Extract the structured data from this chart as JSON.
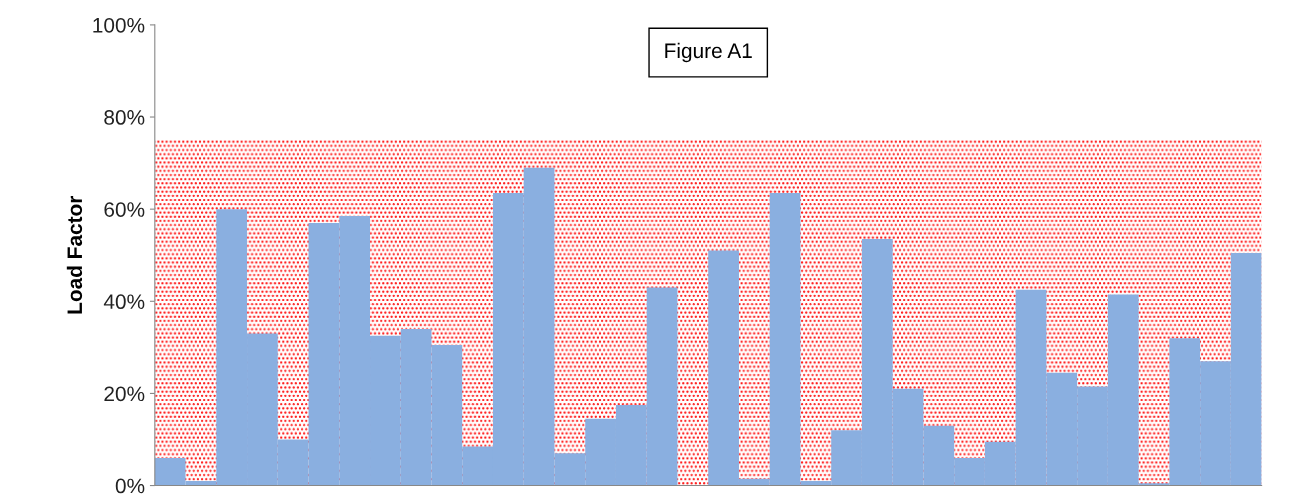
{
  "chart_data": {
    "type": "bar",
    "title": "Figure A1",
    "ylabel": "Load Factor",
    "categories": [
      null,
      null,
      null,
      null,
      null,
      null,
      null,
      null,
      null,
      null,
      null,
      null,
      null,
      null,
      null,
      null,
      null,
      null,
      null,
      null,
      null,
      null,
      null,
      null,
      null,
      null,
      null,
      null,
      null,
      null,
      null,
      null,
      null,
      null,
      null,
      null
    ],
    "values": [
      6,
      1,
      60,
      33,
      10,
      57,
      58.5,
      32.5,
      34,
      30.5,
      8.5,
      63.5,
      69,
      7,
      14.5,
      17.5,
      43,
      0,
      51,
      1.5,
      63.5,
      1,
      12,
      53.5,
      21,
      13,
      6,
      9.5,
      42.5,
      24.5,
      21.5,
      41.5,
      0.5,
      32,
      27,
      50.5
    ],
    "color": "#8aafe0",
    "ylim": [
      0,
      100
    ],
    "yticks": [
      {
        "value": 0,
        "label": "0%"
      },
      {
        "value": 20,
        "label": "20%"
      },
      {
        "value": 40,
        "label": "40%"
      },
      {
        "value": 60,
        "label": "60%"
      },
      {
        "value": 80,
        "label": "80%"
      },
      {
        "value": 100,
        "label": "100%"
      }
    ],
    "bands": [
      {
        "axis": "y",
        "from": 0,
        "to": 75,
        "color": "#ff0000"
      }
    ],
    "tick_labels": "y",
    "grid": false
  }
}
